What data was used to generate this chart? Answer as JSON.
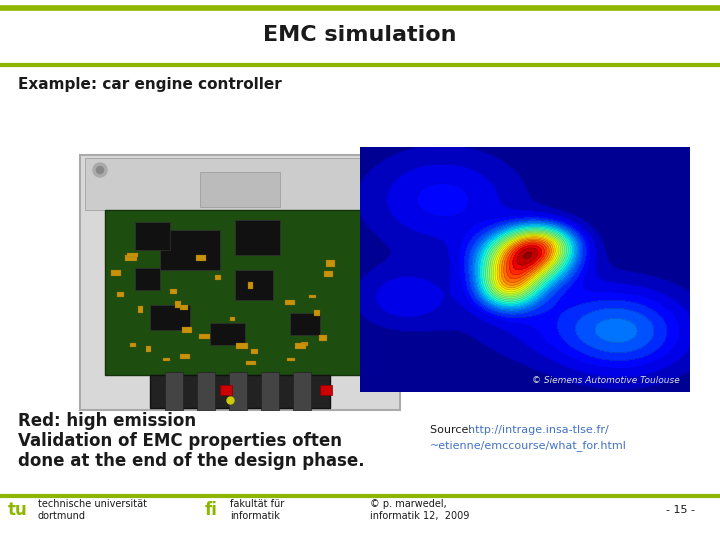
{
  "title": "EMC simulation",
  "subtitle": "Example: car engine controller",
  "red_text": "Red: high emission",
  "body_line2": "Validation of EMC properties often",
  "body_line3": "done at the end of the design phase.",
  "source_label": "Source: ",
  "source_link": "http://intrage.insa-tlse.fr/",
  "source_line2": "~etienne/emccourse/what_for.html",
  "copyright_text": "© Siemens Automotive Toulouse",
  "footer_left1": "technische universität",
  "footer_left2": "dortmund",
  "footer_mid1": "fakultät für",
  "footer_mid2": "informatik",
  "footer_right1": "© p. marwedel,",
  "footer_right2": "informatik 12,  2009",
  "footer_page": "- 15 -",
  "bg_color": "#ffffff",
  "title_color": "#1a1a1a",
  "header_line_color": "#8db500",
  "subtitle_color": "#1a1a1a",
  "body_color": "#1a1a1a",
  "source_color_label": "#1a1a1a",
  "source_color_link": "#4472c4",
  "footer_text_color": "#1a1a1a",
  "logo_color": "#8db500",
  "title_fontsize": 16,
  "subtitle_fontsize": 11,
  "body_fontsize": 12,
  "source_fontsize": 8,
  "footer_fontsize": 7,
  "copyright_fontsize": 6.5
}
